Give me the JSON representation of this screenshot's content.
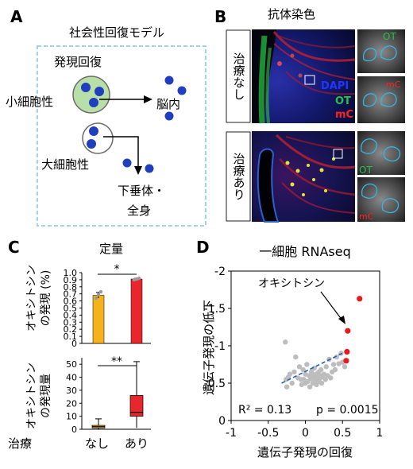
{
  "panels": {
    "A": {
      "letter": "A",
      "title": "社会性回復モデル",
      "recovery_label": "発現回復",
      "small_cell_label": "小細胞性",
      "brain_label": "脳内",
      "large_cell_label": "大細胞性",
      "pituitary_label_1": "下垂体・",
      "pituitary_label_2": "全身",
      "colors": {
        "box_border": "#7ec8e3",
        "green_cell": "#b9dfa8",
        "dot": "#1f3fbf"
      }
    },
    "B": {
      "letter": "B",
      "title": "抗体染色",
      "row_labels": [
        "治療なし",
        "治療あり"
      ],
      "stain_labels": [
        "DAPI",
        "OT",
        "mC"
      ],
      "inset_labels": {
        "top_ot": "OT",
        "top_mc": "mC",
        "bottom_ot": "OT",
        "bottom_mc": "mC"
      },
      "colors": {
        "dapi": "#2035ff",
        "ot": "#25c24a",
        "mc": "#ff2020",
        "outline": "#35b5e5"
      }
    },
    "C": {
      "letter": "C",
      "title": "定量",
      "colors": {
        "untreated": "#f5b21c",
        "treated": "#e8262b"
      },
      "top": {
        "ylabel_1": "オキシトシン",
        "ylabel_2": "の発現 (%)",
        "significance": "*",
        "yticks": [
          "0",
          "0.1",
          "0.2",
          "0.3",
          "0.4",
          "0.5",
          "0.6",
          "0.7",
          "0.8",
          "0.9",
          "1.0"
        ]
      },
      "bottom": {
        "ylabel_1": "オキシトシン",
        "ylabel_2": "の発現量",
        "significance": "**",
        "yticks": [
          "0",
          "10",
          "20",
          "30",
          "40",
          "50"
        ]
      },
      "x_axis_title": "治療",
      "categories": [
        "なし",
        "あり"
      ]
    },
    "D": {
      "letter": "D",
      "title": "一細胞 RNAseq",
      "annotation": "オキシトシン",
      "stats_r2": "R² = 0.13",
      "stats_p": "p = 0.0015",
      "colors": {
        "points": "#bdbdbd",
        "highlight": "#e8191f",
        "fit": "#1f5fbf"
      }
    }
  },
  "chart_data": [
    {
      "type": "bar",
      "panel": "C-top",
      "categories": [
        "なし",
        "あり"
      ],
      "values": [
        0.68,
        0.91
      ],
      "errors": [
        0.04,
        0.01
      ],
      "points": [
        [
          0.64,
          0.69,
          0.73
        ],
        [
          0.9,
          0.91,
          0.92
        ]
      ],
      "ylabel": "オキシトシンの発現 (%)",
      "ylim": [
        0,
        1.0
      ],
      "significance": "*"
    },
    {
      "type": "box",
      "panel": "C-bottom",
      "categories": [
        "なし",
        "あり"
      ],
      "boxes": [
        {
          "min": 0,
          "q1": 1,
          "median": 2,
          "q3": 3,
          "max": 8
        },
        {
          "min": 1,
          "q1": 10,
          "median": 13,
          "q3": 26,
          "max": 52
        }
      ],
      "ylabel": "オキシトシンの発現量",
      "ylim": [
        0,
        55
      ],
      "significance": "**"
    },
    {
      "type": "scatter",
      "panel": "D",
      "xlabel": "遺伝子発現の回復",
      "ylabel": "遺伝子発現の低下",
      "xlim": [
        -1,
        1
      ],
      "ylim": [
        -2,
        0
      ],
      "y_axis_inverted": true,
      "xticks": [
        "-1",
        "-0.5",
        "0",
        "0.5",
        "1"
      ],
      "yticks": [
        "-2",
        "-1.5",
        "-1",
        "-0.5",
        "0"
      ],
      "points": [
        [
          -0.27,
          -1.05
        ],
        [
          -0.26,
          -0.55
        ],
        [
          -0.25,
          -0.45
        ],
        [
          -0.23,
          -0.58
        ],
        [
          -0.21,
          -0.62
        ],
        [
          -0.18,
          -0.5
        ],
        [
          -0.15,
          -0.65
        ],
        [
          -0.13,
          -0.85
        ],
        [
          -0.1,
          -0.57
        ],
        [
          -0.08,
          -0.72
        ],
        [
          -0.06,
          -0.55
        ],
        [
          -0.05,
          -0.48
        ],
        [
          -0.03,
          -0.68
        ],
        [
          -0.02,
          -0.55
        ],
        [
          0.0,
          -0.62
        ],
        [
          0.0,
          -0.5
        ],
        [
          0.02,
          -0.75
        ],
        [
          0.03,
          -0.52
        ],
        [
          0.05,
          -0.6
        ],
        [
          0.06,
          -0.45
        ],
        [
          0.07,
          -0.56
        ],
        [
          0.08,
          -0.65
        ],
        [
          0.1,
          -0.5
        ],
        [
          0.11,
          -0.6
        ],
        [
          0.12,
          -0.7
        ],
        [
          0.13,
          -0.55
        ],
        [
          0.14,
          -0.62
        ],
        [
          0.15,
          -0.48
        ],
        [
          0.16,
          -0.58
        ],
        [
          0.17,
          -0.52
        ],
        [
          0.18,
          -0.65
        ],
        [
          0.19,
          -0.56
        ],
        [
          0.2,
          -0.6
        ],
        [
          0.21,
          -0.68
        ],
        [
          0.22,
          -0.5
        ],
        [
          0.23,
          -0.58
        ],
        [
          0.25,
          -0.62
        ],
        [
          0.27,
          -0.55
        ],
        [
          0.28,
          -0.72
        ],
        [
          0.3,
          -0.6
        ],
        [
          0.32,
          -0.82
        ],
        [
          0.34,
          -0.57
        ],
        [
          0.36,
          -0.65
        ],
        [
          0.38,
          -0.75
        ],
        [
          0.4,
          -0.68
        ],
        [
          0.42,
          -0.85
        ],
        [
          0.45,
          -0.76
        ],
        [
          0.48,
          -0.9
        ],
        [
          0.5,
          -0.78
        ],
        [
          0.53,
          -0.72
        ]
      ],
      "highlight_points": [
        [
          0.73,
          -1.63
        ],
        [
          0.57,
          -1.2
        ],
        [
          0.56,
          -0.92
        ],
        [
          0.55,
          -0.8
        ]
      ],
      "fit_line": [
        [
          -0.32,
          -0.5
        ],
        [
          0.6,
          -0.95
        ]
      ],
      "stats": {
        "R2": 0.13,
        "p": 0.0015
      }
    }
  ]
}
